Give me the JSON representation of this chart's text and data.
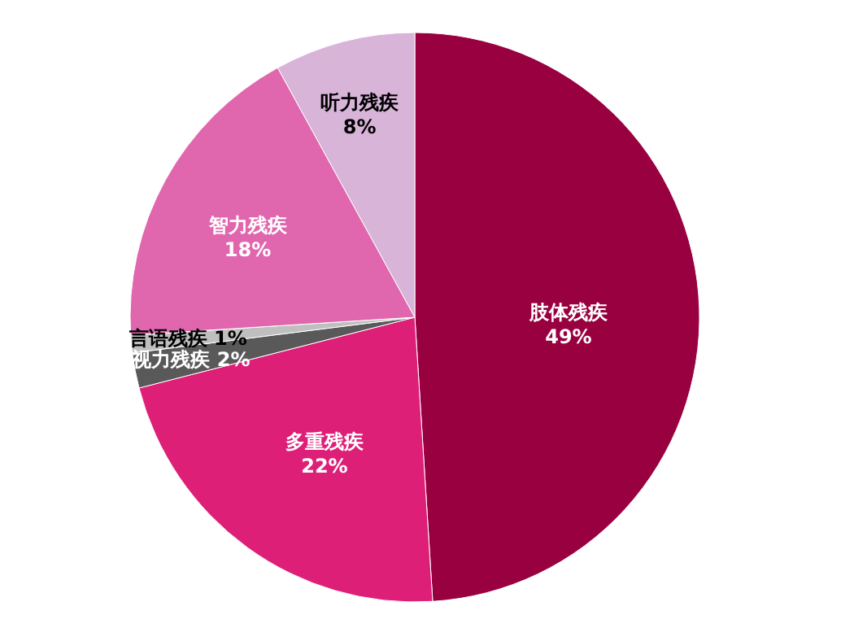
{
  "chart_data": {
    "type": "pie",
    "categories": [
      "肢体残疾",
      "多重残疾",
      "视力残疾",
      "言语残疾",
      "智力残疾",
      "听力残疾"
    ],
    "values": [
      49,
      22,
      2,
      1,
      18,
      8
    ],
    "colors": [
      "#99003f",
      "#dd1f78",
      "#595959",
      "#bfbfbf",
      "#e066ad",
      "#d8b4d8"
    ],
    "value_labels": [
      "49%",
      "22%",
      "2%",
      "1%",
      "18%",
      "8%"
    ]
  }
}
